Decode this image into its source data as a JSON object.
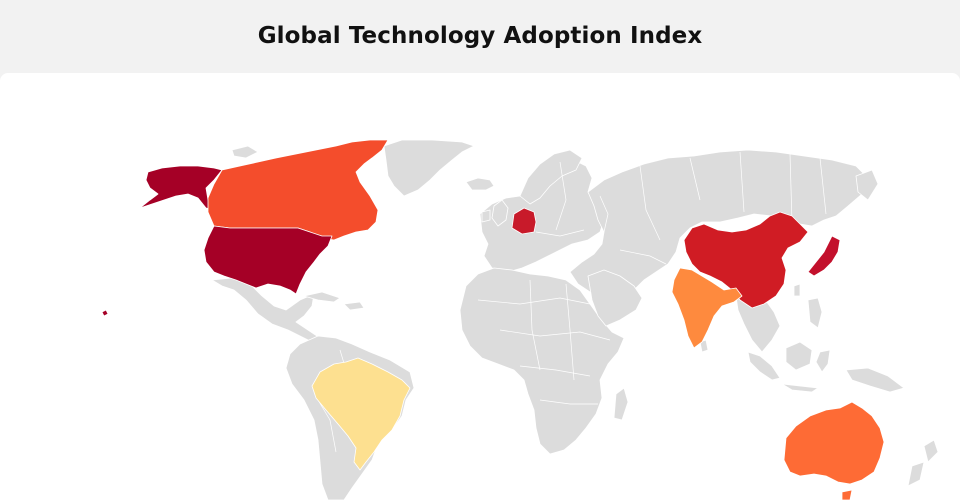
{
  "title": "Global Technology Adoption Index",
  "colors": {
    "background": "#f2f2f2",
    "panel": "#ffffff",
    "land_default": "#dcdcdc",
    "country_borders": "#ffffff"
  },
  "highlighted_regions": [
    {
      "id": "usa",
      "name": "United States",
      "color": "#a50026"
    },
    {
      "id": "alaska",
      "name": "Alaska (United States)",
      "color": "#a50026"
    },
    {
      "id": "canada",
      "name": "Canada",
      "color": "#f44d2c"
    },
    {
      "id": "china",
      "name": "China",
      "color": "#d01c24"
    },
    {
      "id": "japan",
      "name": "Japan",
      "color": "#c3102c"
    },
    {
      "id": "germany",
      "name": "Germany",
      "color": "#c81a2a"
    },
    {
      "id": "india",
      "name": "India",
      "color": "#fe8a3e"
    },
    {
      "id": "australia",
      "name": "Australia",
      "color": "#fe6b35"
    },
    {
      "id": "brazil",
      "name": "Brazil",
      "color": "#fde090"
    }
  ]
}
